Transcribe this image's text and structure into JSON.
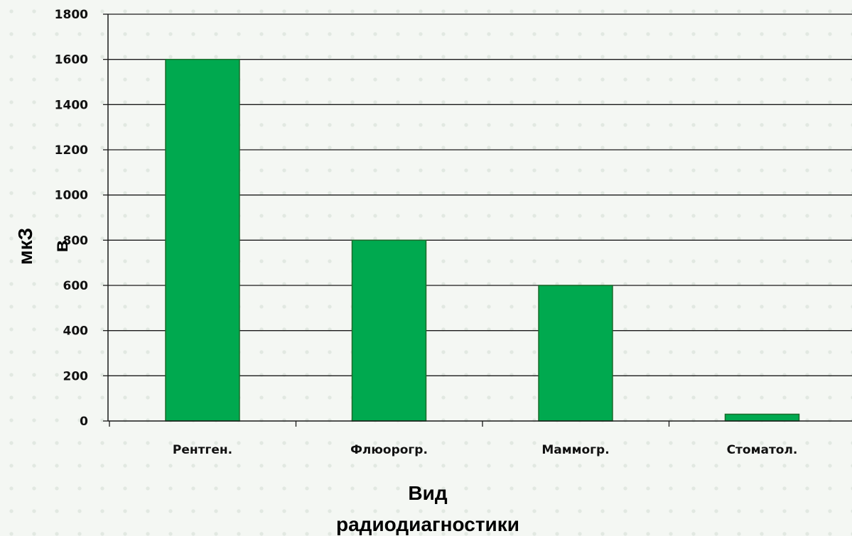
{
  "chart_data": {
    "type": "bar",
    "categories": [
      "Рентген.",
      "Флюорогр.",
      "Маммогр.",
      "Стоматол."
    ],
    "values": [
      1600,
      800,
      600,
      30
    ],
    "ylim": [
      0,
      1800
    ],
    "yticks": [
      0,
      200,
      400,
      600,
      800,
      1000,
      1200,
      1400,
      1600,
      1800
    ],
    "xlabel_lines": [
      "Вид",
      "радиодиагностики"
    ],
    "ylabel_lines": [
      "мкЗ",
      "в"
    ],
    "grid": true,
    "bar_color": "#00a94f",
    "bar_border": "#1a6b2a"
  }
}
